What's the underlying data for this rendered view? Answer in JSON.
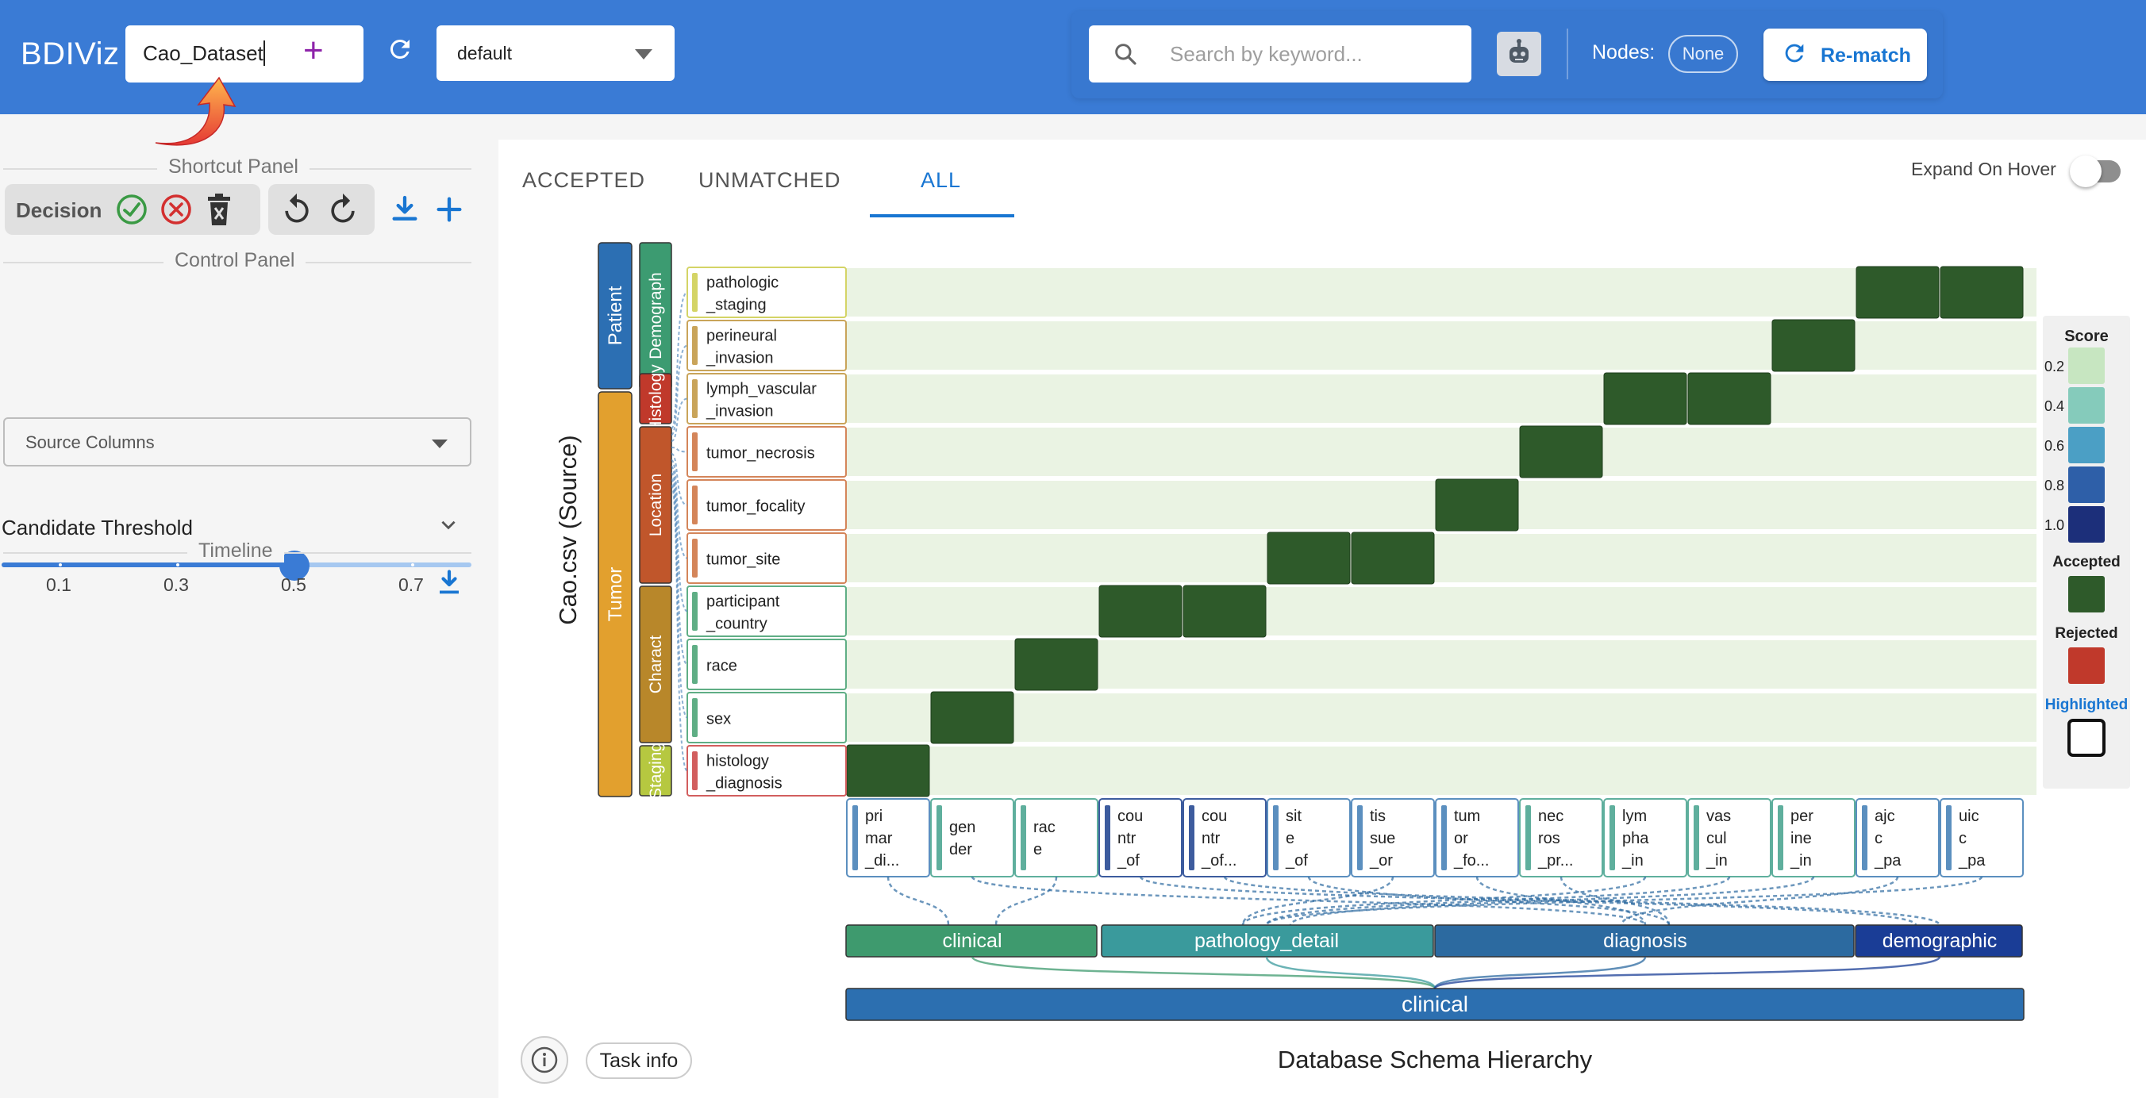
{
  "header": {
    "brand": "BDIViz",
    "dataset_value": "Cao_Dataset",
    "add_label": "+",
    "select_value": "default",
    "search_placeholder": "Search by keyword...",
    "nodes_label": "Nodes:",
    "nodes_value": "None",
    "rematch_label": "Re-match"
  },
  "left_panel": {
    "shortcut_title": "Shortcut Panel",
    "decision_label": "Decision",
    "control_title": "Control Panel",
    "source_columns_placeholder": "Source Columns",
    "threshold_label": "Candidate Threshold",
    "threshold_value": 0.5,
    "threshold_ticks": [
      "0.1",
      "0.3",
      "0.5",
      "0.7"
    ],
    "timeline_title": "Timeline"
  },
  "main": {
    "tabs": [
      "ACCEPTED",
      "UNMATCHED",
      "ALL"
    ],
    "active_tab": "ALL",
    "expand_hover_label": "Expand On Hover",
    "expand_hover_on": false,
    "source_axis_title": "Cao.csv (Source)",
    "target_axis_title": "Database Schema Hierarchy",
    "task_info_label": "Task info"
  },
  "chart_data": {
    "type": "heatmap",
    "source_level1": [
      {
        "label": "Patient",
        "color": "#2c6fb3",
        "rows": [
          0,
          1
        ]
      },
      {
        "label": "Tumor",
        "color": "#e2a02e",
        "rows": [
          1,
          9
        ]
      }
    ],
    "source_level2": [
      {
        "label": "Demograph",
        "color": "#3c9b71",
        "rows": [
          0,
          1
        ]
      },
      {
        "label": "Histology",
        "color": "#c0392b",
        "rows": [
          2,
          2
        ]
      },
      {
        "label": "Location",
        "color": "#c0562b",
        "rows": [
          3,
          5
        ]
      },
      {
        "label": "Charact",
        "color": "#b8872a",
        "rows": [
          6,
          8
        ]
      },
      {
        "label": "Staging",
        "color": "#b6c840",
        "rows": [
          9,
          9
        ]
      }
    ],
    "rows": [
      {
        "label": "pathologic\n_staging",
        "color": "#d4d466"
      },
      {
        "label": "perineural\n_invasion",
        "color": "#c9a45a"
      },
      {
        "label": "lymph_vascular\n_invasion",
        "color": "#c9a45a"
      },
      {
        "label": "tumor_necrosis",
        "color": "#d4855a"
      },
      {
        "label": "tumor_focality",
        "color": "#d4855a"
      },
      {
        "label": "tumor_site",
        "color": "#d4855a"
      },
      {
        "label": "participant\n_country",
        "color": "#5fae85"
      },
      {
        "label": "race",
        "color": "#5fae85"
      },
      {
        "label": "sex",
        "color": "#5fae85"
      },
      {
        "label": "histology\n_diagnosis",
        "color": "#d25e5e"
      }
    ],
    "columns": [
      {
        "label": "pri\nmar\n_di...",
        "color": "#5b8fbf"
      },
      {
        "label": "gen\nder",
        "color": "#5faf9d"
      },
      {
        "label": "rac\ne",
        "color": "#5faf9d"
      },
      {
        "label": "cou\nntr\n_of",
        "color": "#3d5c9e"
      },
      {
        "label": "cou\nntr\n_of...",
        "color": "#3d5c9e"
      },
      {
        "label": "sit\ne\n_of",
        "color": "#5b8fbf"
      },
      {
        "label": "tis\nsue\n_or",
        "color": "#5b8fbf"
      },
      {
        "label": "tum\nor\n_fo...",
        "color": "#5b8fbf"
      },
      {
        "label": "nec\nros\n_pr...",
        "color": "#5faf9d"
      },
      {
        "label": "lym\npha\n_in",
        "color": "#5faf9d"
      },
      {
        "label": "vas\ncul\n_in",
        "color": "#5faf9d"
      },
      {
        "label": "per\nine\n_in",
        "color": "#5faf9d"
      },
      {
        "label": "ajc\nc\n_pa",
        "color": "#5b8fbf"
      },
      {
        "label": "uic\nc\n_pa",
        "color": "#5b8fbf"
      }
    ],
    "accepted_cells": [
      [
        0,
        12
      ],
      [
        0,
        13
      ],
      [
        1,
        11
      ],
      [
        2,
        9
      ],
      [
        2,
        10
      ],
      [
        3,
        8
      ],
      [
        4,
        7
      ],
      [
        5,
        5
      ],
      [
        5,
        6
      ],
      [
        6,
        3
      ],
      [
        6,
        4
      ],
      [
        7,
        2
      ],
      [
        8,
        1
      ],
      [
        9,
        0
      ]
    ],
    "target_categories": [
      {
        "label": "clinical",
        "color": "#3e9a6e",
        "cols": [
          0,
          2
        ]
      },
      {
        "label": "pathology_detail",
        "color": "#3a9a9c",
        "cols": [
          3,
          6
        ]
      },
      {
        "label": "diagnosis",
        "color": "#2c6aa0",
        "cols": [
          7,
          11
        ]
      },
      {
        "label": "demographic",
        "color": "#1a3d96",
        "cols": [
          12,
          13
        ]
      }
    ],
    "target_root": {
      "label": "clinical",
      "color": "#2c6fb0"
    },
    "legend": {
      "title": "Score",
      "levels": [
        {
          "value": "0.2",
          "color": "#c7e6c1"
        },
        {
          "value": "0.4",
          "color": "#85cbbb"
        },
        {
          "value": "0.6",
          "color": "#4b9fc5"
        },
        {
          "value": "0.8",
          "color": "#2e5fa8"
        },
        {
          "value": "1.0",
          "color": "#1c2f7a"
        }
      ],
      "accepted_label": "Accepted",
      "accepted_color": "#2e5a2a",
      "rejected_label": "Rejected",
      "rejected_color": "#c0392b",
      "highlighted_label": "Highlighted"
    },
    "row_bg_color": "#eaf3e3"
  }
}
